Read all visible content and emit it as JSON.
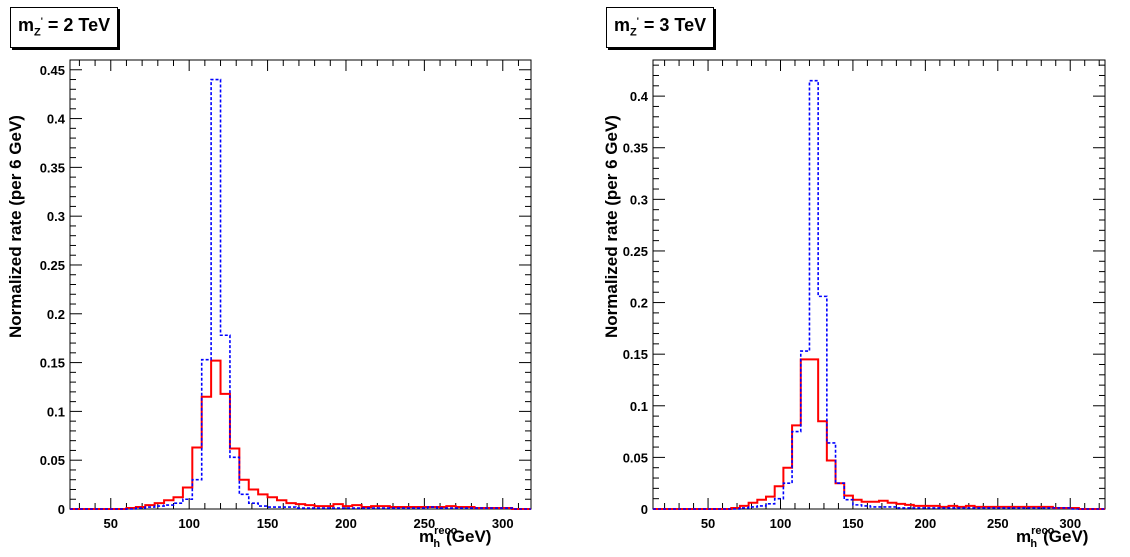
{
  "chart_data": [
    {
      "type": "line",
      "title": "m_Z' = 2 TeV",
      "title_parts": {
        "m": "m",
        "sub": "Z",
        "sup": "'",
        "rest": " = 2 TeV"
      },
      "xlabel": "m_h^reco (GeV)",
      "xlabel_parts": {
        "m": "m",
        "sup": "reco",
        "sub": "h",
        "rest": "(GeV)"
      },
      "ylabel": "Normalized rate (per 6 GeV)",
      "xlim": [
        24,
        318
      ],
      "ylim": [
        0,
        0.46
      ],
      "xticks": [
        50,
        100,
        150,
        200,
        250,
        300
      ],
      "yticks": [
        0,
        0.05,
        0.1,
        0.15,
        0.2,
        0.25,
        0.3,
        0.35,
        0.4,
        0.45
      ],
      "ytick_labels": [
        "0",
        "0.05",
        "0.1",
        "0.15",
        "0.2",
        "0.25",
        "0.3",
        "0.35",
        "0.4",
        "0.45"
      ],
      "bin_edges": [
        24,
        30,
        36,
        42,
        48,
        54,
        60,
        66,
        72,
        78,
        84,
        90,
        96,
        102,
        108,
        114,
        120,
        126,
        132,
        138,
        144,
        150,
        156,
        162,
        168,
        174,
        180,
        186,
        192,
        198,
        204,
        210,
        216,
        222,
        228,
        234,
        240,
        246,
        252,
        258,
        264,
        270,
        276,
        282,
        288,
        294,
        300,
        306,
        312,
        318
      ],
      "series": [
        {
          "style": "solid",
          "color": "#ff0000",
          "values": [
            0,
            0,
            0,
            0,
            0,
            0,
            0.001,
            0.002,
            0.004,
            0.006,
            0.009,
            0.012,
            0.022,
            0.063,
            0.115,
            0.152,
            0.118,
            0.062,
            0.03,
            0.02,
            0.015,
            0.012,
            0.009,
            0.006,
            0.005,
            0.004,
            0.003,
            0.003,
            0.005,
            0.003,
            0.004,
            0.002,
            0.003,
            0.003,
            0.002,
            0.002,
            0.002,
            0.002,
            0.002,
            0.002,
            0.003,
            0.002,
            0.002,
            0.001,
            0.001,
            0.001,
            0.001,
            0,
            0
          ]
        },
        {
          "style": "dotted",
          "color": "#0000ff",
          "values": [
            0,
            0,
            0,
            0,
            0,
            0,
            0,
            0.001,
            0.002,
            0.003,
            0.004,
            0.006,
            0.01,
            0.03,
            0.153,
            0.44,
            0.178,
            0.053,
            0.015,
            0.006,
            0.003,
            0.002,
            0.002,
            0.002,
            0.001,
            0.001,
            0.001,
            0.001,
            0.001,
            0.001,
            0.001,
            0.001,
            0.001,
            0.001,
            0.001,
            0.001,
            0.001,
            0.001,
            0.002,
            0.001,
            0.001,
            0.001,
            0.001,
            0.001,
            0.001,
            0.001,
            0.001,
            0,
            0
          ]
        }
      ]
    },
    {
      "type": "line",
      "title": "m_Z' = 3 TeV",
      "title_parts": {
        "m": "m",
        "sub": "Z",
        "sup": "'",
        "rest": " = 3 TeV"
      },
      "xlabel": "m_h^reco (GeV)",
      "xlabel_parts": {
        "m": "m",
        "sup": "reco",
        "sub": "h",
        "rest": "(GeV)"
      },
      "ylabel": "Normalized rate (per 6 GeV)",
      "xlim": [
        12,
        324
      ],
      "ylim": [
        0,
        0.435
      ],
      "xticks": [
        50,
        100,
        150,
        200,
        250,
        300
      ],
      "yticks": [
        0,
        0.05,
        0.1,
        0.15,
        0.2,
        0.25,
        0.3,
        0.35,
        0.4
      ],
      "ytick_labels": [
        "0",
        "0.05",
        "0.1",
        "0.15",
        "0.2",
        "0.25",
        "0.3",
        "0.35",
        "0.4"
      ],
      "bin_edges": [
        12,
        18,
        24,
        30,
        36,
        42,
        48,
        54,
        60,
        66,
        72,
        78,
        84,
        90,
        96,
        102,
        108,
        114,
        120,
        126,
        132,
        138,
        144,
        150,
        156,
        162,
        168,
        174,
        180,
        186,
        192,
        198,
        204,
        210,
        216,
        222,
        228,
        234,
        240,
        246,
        252,
        258,
        264,
        270,
        276,
        282,
        288,
        294,
        300,
        306,
        312,
        318,
        324
      ],
      "series": [
        {
          "style": "solid",
          "color": "#ff0000",
          "values": [
            0,
            0,
            0,
            0,
            0,
            0,
            0,
            0,
            0,
            0.001,
            0.003,
            0.006,
            0.009,
            0.012,
            0.022,
            0.04,
            0.081,
            0.145,
            0.145,
            0.085,
            0.047,
            0.025,
            0.013,
            0.009,
            0.007,
            0.007,
            0.008,
            0.006,
            0.005,
            0.004,
            0.003,
            0.003,
            0.003,
            0.002,
            0.003,
            0.002,
            0.003,
            0.002,
            0.002,
            0.002,
            0.002,
            0.002,
            0.002,
            0.002,
            0.002,
            0.002,
            0.001,
            0.001,
            0.001,
            0,
            0,
            0
          ]
        },
        {
          "style": "dotted",
          "color": "#0000ff",
          "values": [
            0,
            0,
            0,
            0,
            0,
            0,
            0,
            0,
            0,
            0,
            0.001,
            0.002,
            0.003,
            0.005,
            0.01,
            0.025,
            0.075,
            0.153,
            0.415,
            0.206,
            0.064,
            0.025,
            0.009,
            0.004,
            0.003,
            0.002,
            0.002,
            0.002,
            0.001,
            0.001,
            0.001,
            0.001,
            0.001,
            0.001,
            0.001,
            0.001,
            0.001,
            0.001,
            0.001,
            0.001,
            0.001,
            0.001,
            0.001,
            0.001,
            0.001,
            0.001,
            0.001,
            0.001,
            0,
            0,
            0,
            0
          ]
        }
      ]
    }
  ]
}
